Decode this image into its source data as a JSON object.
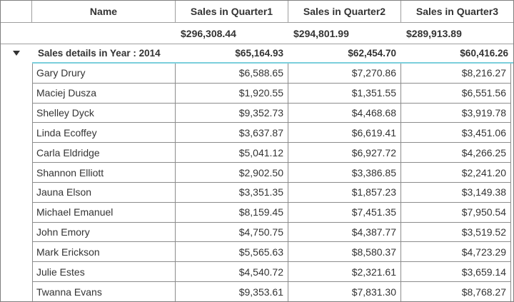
{
  "grid": {
    "columns": {
      "expander": "",
      "name": "Name",
      "quarter1": "Sales in Quarter1",
      "quarter2": "Sales in Quarter2",
      "quarter3": "Sales in Quarter3"
    },
    "summary": {
      "quarter1": "$296,308.44",
      "quarter2": "$294,801.99",
      "quarter3": "$289,913.89"
    },
    "group": {
      "label": "Sales details in Year : 2014",
      "quarter1": "$65,164.93",
      "quarter2": "$62,454.70",
      "quarter3": "$60,416.26",
      "state": "expanded"
    },
    "rows": [
      {
        "name": "Gary Drury",
        "q1": "$6,588.65",
        "q2": "$7,270.86",
        "q3": "$8,216.27"
      },
      {
        "name": "Maciej Dusza",
        "q1": "$1,920.55",
        "q2": "$1,351.55",
        "q3": "$6,551.56"
      },
      {
        "name": "Shelley Dyck",
        "q1": "$9,352.73",
        "q2": "$4,468.68",
        "q3": "$3,919.78"
      },
      {
        "name": "Linda Ecoffey",
        "q1": "$3,637.87",
        "q2": "$6,619.41",
        "q3": "$3,451.06"
      },
      {
        "name": "Carla Eldridge",
        "q1": "$5,041.12",
        "q2": "$6,927.72",
        "q3": "$4,266.25"
      },
      {
        "name": "Shannon Elliott",
        "q1": "$2,902.50",
        "q2": "$3,386.85",
        "q3": "$2,241.20"
      },
      {
        "name": "Jauna Elson",
        "q1": "$3,351.35",
        "q2": "$1,857.23",
        "q3": "$3,149.38"
      },
      {
        "name": "Michael Emanuel",
        "q1": "$8,159.45",
        "q2": "$7,451.35",
        "q3": "$7,950.54"
      },
      {
        "name": "John Emory",
        "q1": "$4,750.75",
        "q2": "$4,387.77",
        "q3": "$3,519.52"
      },
      {
        "name": "Mark Erickson",
        "q1": "$5,565.63",
        "q2": "$8,580.37",
        "q3": "$4,723.29"
      },
      {
        "name": "Julie Estes",
        "q1": "$4,540.72",
        "q2": "$2,321.61",
        "q3": "$3,659.14"
      },
      {
        "name": "Twanna Evans",
        "q1": "$9,353.61",
        "q2": "$7,831.30",
        "q3": "$8,768.27"
      }
    ],
    "colors": {
      "child_block_accent": "#7bcfdc",
      "grid_line": "#8c8c8c",
      "header_line": "#9e9e9e",
      "outer_border": "#7f7f7f",
      "text": "#333333"
    }
  }
}
